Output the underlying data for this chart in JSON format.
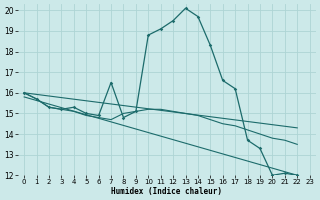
{
  "xlabel": "Humidex (Indice chaleur)",
  "xlim": [
    -0.5,
    23.5
  ],
  "ylim": [
    12,
    20.3
  ],
  "yticks": [
    12,
    13,
    14,
    15,
    16,
    17,
    18,
    19,
    20
  ],
  "xticks": [
    0,
    1,
    2,
    3,
    4,
    5,
    6,
    7,
    8,
    9,
    10,
    11,
    12,
    13,
    14,
    15,
    16,
    17,
    18,
    19,
    20,
    21,
    22,
    23
  ],
  "bg_color": "#cce9e9",
  "grid_color": "#aed4d4",
  "line_color": "#1c6b6b",
  "main_line": {
    "x": [
      0,
      1,
      2,
      3,
      4,
      5,
      6,
      7,
      8,
      9,
      10,
      11,
      12,
      13,
      14,
      15,
      16,
      17,
      18,
      19,
      20,
      21,
      22
    ],
    "y": [
      16.0,
      15.7,
      15.3,
      15.2,
      15.3,
      15.0,
      14.9,
      16.5,
      14.8,
      15.1,
      18.8,
      19.1,
      19.5,
      20.1,
      19.7,
      18.3,
      16.6,
      16.2,
      13.7,
      13.3,
      12.0,
      12.1,
      12.0
    ]
  },
  "line2": {
    "x": [
      0,
      1,
      2,
      3,
      4,
      5,
      6,
      7,
      8,
      9,
      10,
      11,
      12,
      13,
      14,
      15,
      16,
      17,
      18,
      19,
      20,
      21,
      22
    ],
    "y": [
      16.0,
      15.7,
      15.3,
      15.2,
      15.1,
      14.9,
      14.8,
      14.7,
      15.0,
      15.1,
      15.2,
      15.2,
      15.1,
      15.0,
      14.9,
      14.7,
      14.5,
      14.4,
      14.2,
      14.0,
      13.8,
      13.7,
      13.5
    ]
  },
  "line3": {
    "x": [
      0,
      22
    ],
    "y": [
      16.0,
      14.3
    ]
  },
  "line4": {
    "x": [
      0,
      22
    ],
    "y": [
      15.8,
      12.0
    ]
  }
}
